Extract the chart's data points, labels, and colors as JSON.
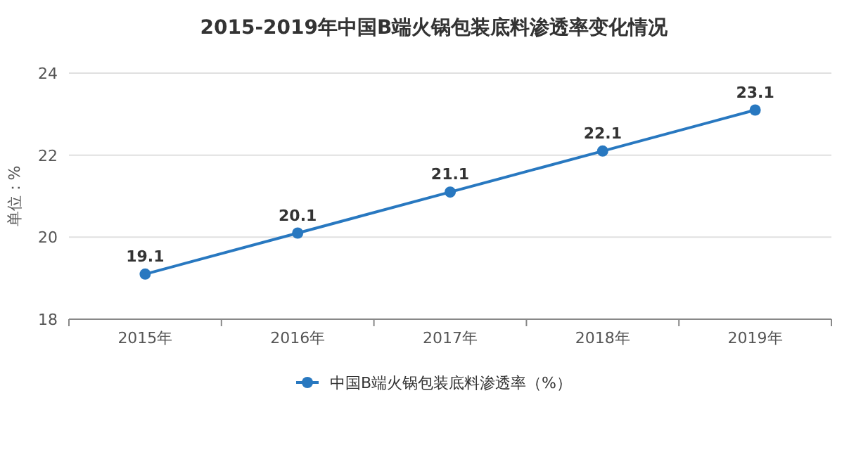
{
  "chart_data": {
    "type": "line",
    "title": "2015-2019年中国B端火锅包装底料渗透率变化情况",
    "ylabel": "单位：%",
    "categories": [
      "2015年",
      "2016年",
      "2017年",
      "2018年",
      "2019年"
    ],
    "series": [
      {
        "name": "中国B端火锅包装底料渗透率（%）",
        "color": "#2878c0",
        "values": [
          19.1,
          20.1,
          21.1,
          22.1,
          23.1
        ]
      }
    ],
    "ylim": [
      18,
      24
    ],
    "yticks": [
      18,
      20,
      22,
      24
    ],
    "grid": "y",
    "legend": "bottom",
    "marker": "circle",
    "line_style": "solid",
    "data_labels": true
  }
}
